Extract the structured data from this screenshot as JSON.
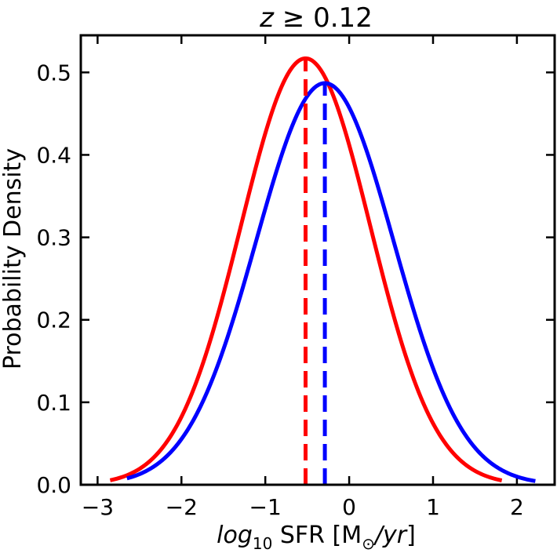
{
  "chart_data": {
    "type": "line",
    "title_prefix": "z",
    "title_rest": " ≥ 0.12",
    "xlabel_italic": "log",
    "xlabel_sub": "10",
    "xlabel_mid": " SFR [M",
    "xlabel_sun": "⊙",
    "xlabel_slash": "/",
    "xlabel_unit": "yr",
    "xlabel_close": "]",
    "ylabel": "Probability Density",
    "xlim": [
      -3.2,
      2.45
    ],
    "ylim": [
      0.0,
      0.545
    ],
    "xticks": [
      -3,
      -2,
      -1,
      0,
      1,
      2
    ],
    "xtick_labels": [
      "−3",
      "−2",
      "−1",
      "0",
      "1",
      "2"
    ],
    "yticks": [
      0.0,
      0.1,
      0.2,
      0.3,
      0.4,
      0.5
    ],
    "ytick_labels": [
      "0.0",
      "0.1",
      "0.2",
      "0.3",
      "0.4",
      "0.5"
    ],
    "series": [
      {
        "name": "red-gaussian",
        "color": "#ff0000",
        "mean": -0.52,
        "peak": 0.517,
        "sigma": 0.772,
        "x_range": [
          -2.85,
          1.82
        ],
        "median_line_x": -0.52,
        "median_line_top": 0.518
      },
      {
        "name": "blue-gaussian",
        "color": "#0000ff",
        "mean": -0.29,
        "peak": 0.487,
        "sigma": 0.82,
        "x_range": [
          -2.65,
          2.22
        ],
        "median_line_x": -0.29,
        "median_line_top": 0.488
      }
    ]
  }
}
